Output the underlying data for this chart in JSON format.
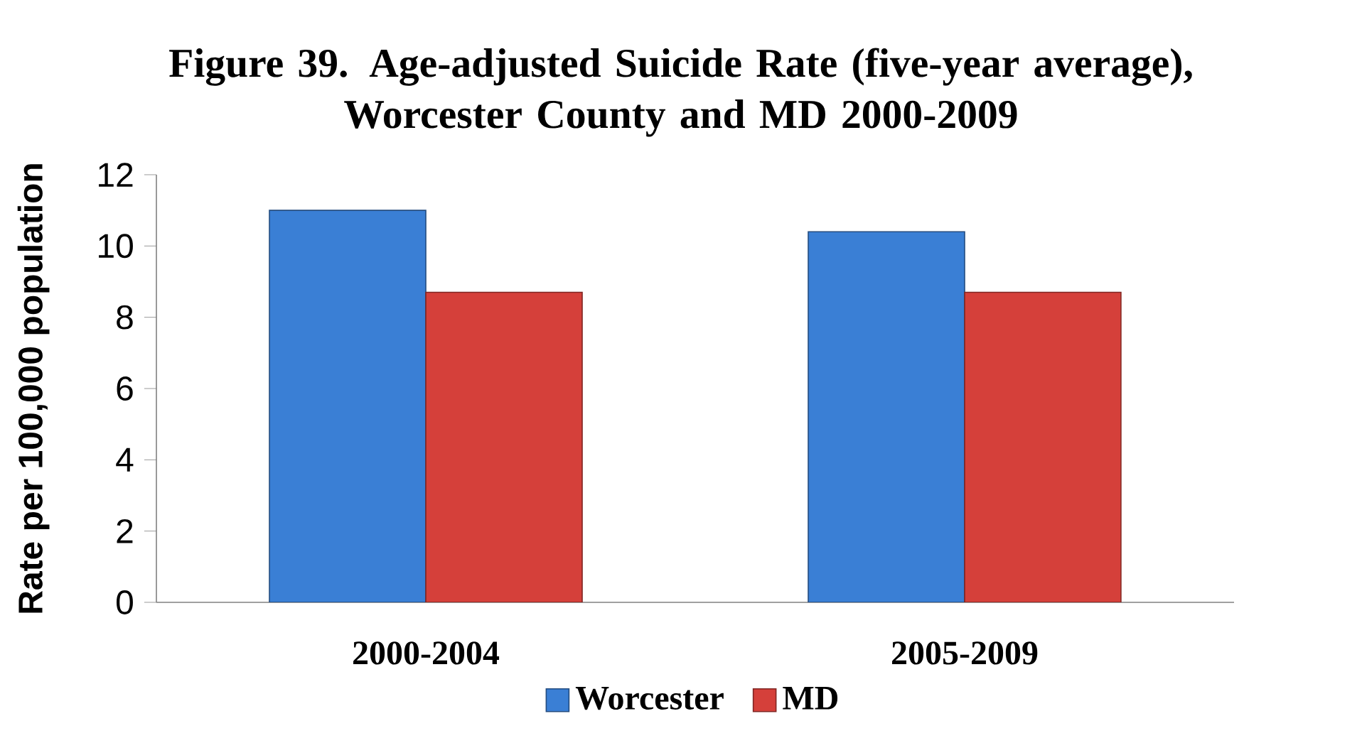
{
  "chart_data": {
    "type": "bar",
    "title": "Figure 39.  Age-adjusted Suicide Rate (five-year average), Worcester County and MD 2000-2009",
    "ylabel": "Rate per 100,000 population",
    "categories": [
      "2000-2004",
      "2005-2009"
    ],
    "series": [
      {
        "name": "Worcester",
        "color": "#3a7fd5",
        "values": [
          11.0,
          10.4
        ]
      },
      {
        "name": "MD",
        "color": "#d5403a",
        "values": [
          8.7,
          8.7
        ]
      }
    ],
    "ylim": [
      0,
      12
    ],
    "yticks": [
      0,
      2,
      4,
      6,
      8,
      10,
      12
    ],
    "grid": false,
    "legend": "bottom"
  }
}
